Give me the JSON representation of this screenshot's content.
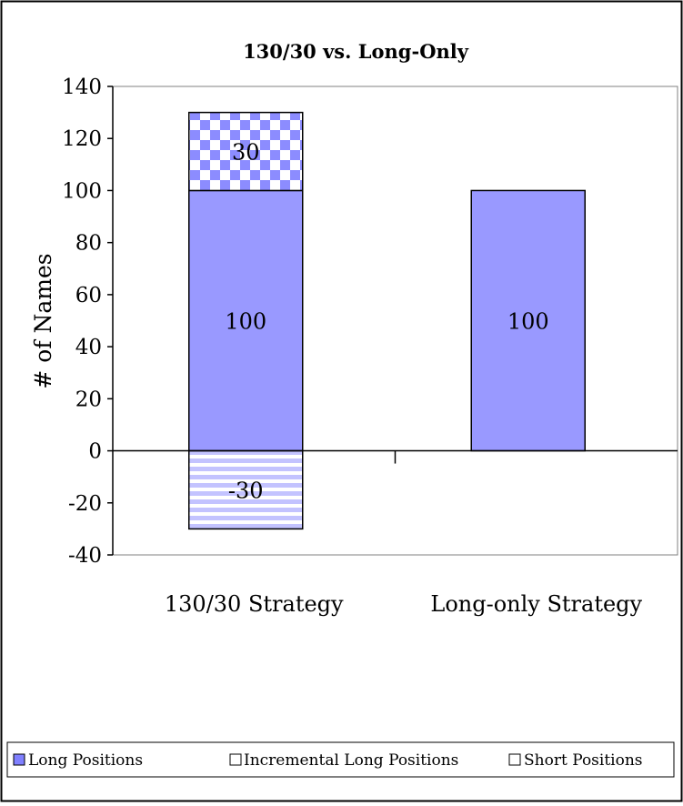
{
  "chart_data": {
    "type": "bar",
    "stacked": true,
    "title": "130/30 vs. Long-Only",
    "xlabel": "",
    "ylabel": "# of Names",
    "ylim": [
      -40,
      140
    ],
    "yticks": [
      "140",
      "120",
      "100",
      "80",
      "60",
      "40",
      "20",
      "0",
      "-20",
      "-40"
    ],
    "categories": [
      "130/30 Strategy",
      "Long-only Strategy"
    ],
    "series": [
      {
        "name": "Long Positions",
        "values": [
          100,
          100
        ],
        "labels": [
          "100",
          "100"
        ],
        "color": "#9999ff",
        "pattern": "solid"
      },
      {
        "name": "Incremental Long Positions",
        "values": [
          30,
          0
        ],
        "labels": [
          "30",
          ""
        ],
        "color": "#9999ff",
        "pattern": "checker"
      },
      {
        "name": "Short Positions",
        "values": [
          -30,
          0
        ],
        "labels": [
          "-30",
          ""
        ],
        "color": "#b3b3ff",
        "pattern": "horizontal-stripes"
      }
    ],
    "grid": false,
    "legend": "bottom"
  }
}
